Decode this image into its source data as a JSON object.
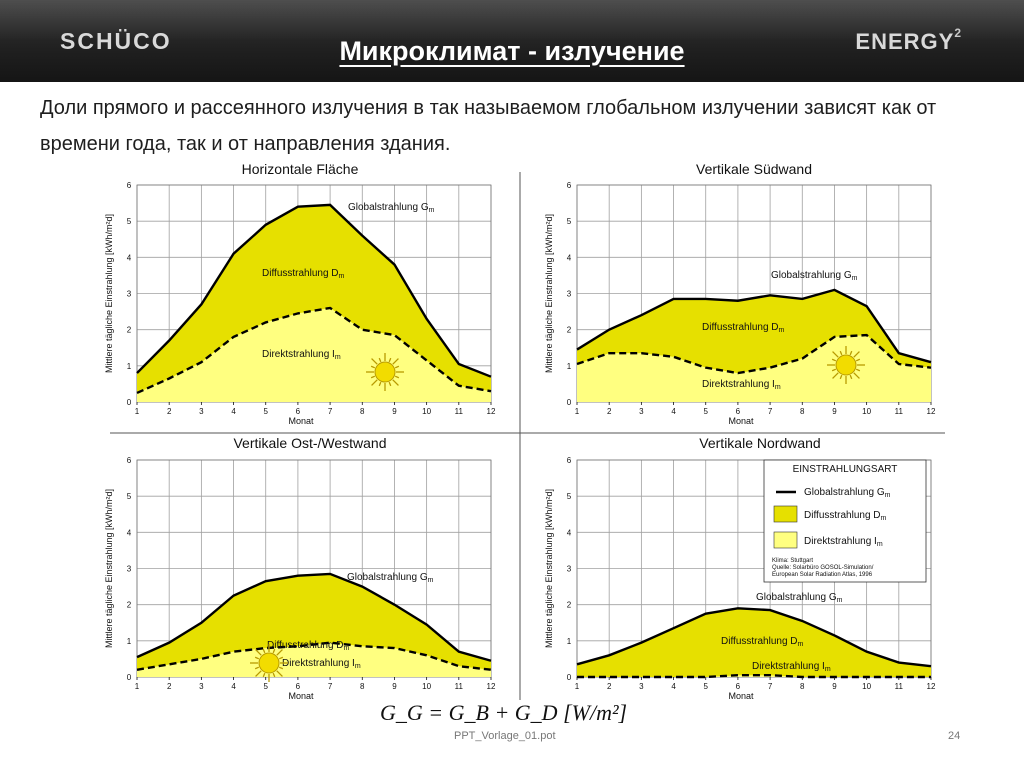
{
  "header": {
    "logo_left": "SCHÜCO",
    "logo_right": "ENERGY",
    "logo_right_sup": "2",
    "title": "Микроклимат - излучение"
  },
  "intro_text": "Доли прямого и рассеянного излучения в так называемом глобальном излучении зависят как от времени года, так и от направления здания.",
  "formula": "G_G = G_B + G_D  [W/m²]",
  "footer": {
    "file": "PPT_Vorlage_01.pot",
    "page": "24"
  },
  "colors": {
    "diffuse": "#e6e000",
    "direct": "#ffff80",
    "line": "#000000",
    "grid": "#a0a0a0"
  },
  "chart_data": [
    {
      "type": "area",
      "title": "Horizontale Fläche",
      "xlabel": "Monat",
      "ylabel": "Mittlere tägliche Einstrahlung [kWh/m²d]",
      "x": [
        1,
        2,
        3,
        4,
        5,
        6,
        7,
        8,
        9,
        10,
        11,
        12
      ],
      "ylim": [
        0,
        6
      ],
      "yticks": [
        0,
        1,
        2,
        3,
        4,
        5,
        6
      ],
      "series": [
        {
          "name": "Globalstrahlung G",
          "values": [
            0.8,
            1.7,
            2.7,
            4.1,
            4.9,
            5.4,
            5.45,
            4.6,
            3.8,
            2.3,
            1.05,
            0.7
          ]
        },
        {
          "name": "Direktstrahlung I",
          "values": [
            0.25,
            0.65,
            1.1,
            1.8,
            2.2,
            2.45,
            2.6,
            2.0,
            1.85,
            1.15,
            0.45,
            0.3
          ]
        }
      ],
      "labels": {
        "global": "Globalstrahlung G",
        "diffuse": "Diffusstrahlung D",
        "direct": "Direktstrahlung I",
        "sub": "m"
      }
    },
    {
      "type": "area",
      "title": "Vertikale Südwand",
      "xlabel": "Monat",
      "ylabel": "Mittlere tägliche Einstrahlung [kWh/m²d]",
      "x": [
        1,
        2,
        3,
        4,
        5,
        6,
        7,
        8,
        9,
        10,
        11,
        12
      ],
      "ylim": [
        0,
        6
      ],
      "yticks": [
        0,
        1,
        2,
        3,
        4,
        5,
        6
      ],
      "series": [
        {
          "name": "Globalstrahlung G",
          "values": [
            1.45,
            2.0,
            2.4,
            2.85,
            2.85,
            2.8,
            2.95,
            2.85,
            3.1,
            2.65,
            1.35,
            1.1
          ]
        },
        {
          "name": "Direktstrahlung I",
          "values": [
            1.05,
            1.35,
            1.35,
            1.25,
            0.95,
            0.8,
            0.95,
            1.2,
            1.8,
            1.85,
            1.05,
            0.95
          ]
        }
      ],
      "labels": {
        "global": "Globalstrahlung G",
        "diffuse": "Diffusstrahlung D",
        "direct": "Direktstrahlung I",
        "sub": "m"
      }
    },
    {
      "type": "area",
      "title": "Vertikale Ost-/Westwand",
      "xlabel": "Monat",
      "ylabel": "Mittlere tägliche Einstrahlung [kWh/m²d]",
      "x": [
        1,
        2,
        3,
        4,
        5,
        6,
        7,
        8,
        9,
        10,
        11,
        12
      ],
      "ylim": [
        0,
        6
      ],
      "yticks": [
        0,
        1,
        2,
        3,
        4,
        5,
        6
      ],
      "series": [
        {
          "name": "Globalstrahlung G",
          "values": [
            0.55,
            0.95,
            1.5,
            2.25,
            2.65,
            2.8,
            2.85,
            2.5,
            2.0,
            1.45,
            0.7,
            0.45
          ]
        },
        {
          "name": "Direktstrahlung I",
          "values": [
            0.2,
            0.35,
            0.5,
            0.7,
            0.8,
            0.85,
            0.95,
            0.85,
            0.8,
            0.6,
            0.3,
            0.2
          ]
        }
      ],
      "labels": {
        "global": "Globalstrahlung G",
        "diffuse": "Diffusstrahlung D",
        "direct": "Direktstrahlung I",
        "sub": "m"
      }
    },
    {
      "type": "area",
      "title": "Vertikale Nordwand",
      "xlabel": "Monat",
      "ylabel": "Mittlere tägliche Einstrahlung [kWh/m²d]",
      "x": [
        1,
        2,
        3,
        4,
        5,
        6,
        7,
        8,
        9,
        10,
        11,
        12
      ],
      "ylim": [
        0,
        6
      ],
      "yticks": [
        0,
        1,
        2,
        3,
        4,
        5,
        6
      ],
      "series": [
        {
          "name": "Globalstrahlung G",
          "values": [
            0.35,
            0.6,
            0.95,
            1.35,
            1.75,
            1.9,
            1.85,
            1.55,
            1.15,
            0.7,
            0.4,
            0.3
          ]
        },
        {
          "name": "Direktstrahlung I",
          "values": [
            0,
            0,
            0,
            0,
            0,
            0.05,
            0.05,
            0,
            0,
            0,
            0,
            0
          ]
        }
      ],
      "labels": {
        "global": "Globalstrahlung G",
        "diffuse": "Diffusstrahlung D",
        "direct": "Direktstrahlung I",
        "sub": "m"
      },
      "legend": {
        "title": "EINSTRAHLUNGSART",
        "items": [
          "Globalstrahlung G",
          "Diffusstrahlung D",
          "Direktstrahlung I"
        ],
        "sub": "m",
        "note_lines": [
          "Klima: Stuttgart",
          "Quelle: Solarbüro GOSOL-Simulation/",
          "European Solar Radiation Atlas, 1996"
        ]
      }
    }
  ]
}
